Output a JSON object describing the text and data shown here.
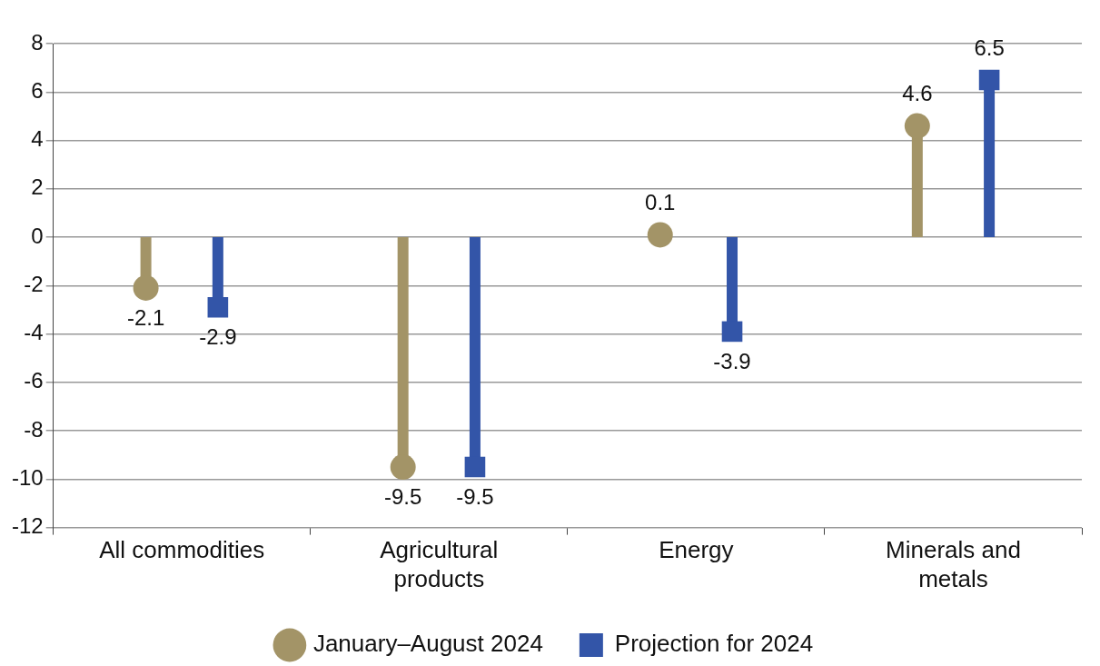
{
  "chart_data": {
    "type": "lollipop",
    "categories": [
      "All commodities",
      "Agricultural products",
      "Energy",
      "Minerals and metals"
    ],
    "series": [
      {
        "name": "January–August 2024",
        "color": "#a39467",
        "marker": "circle",
        "values": [
          -2.1,
          -9.5,
          0.1,
          4.6
        ]
      },
      {
        "name": "Projection for 2024",
        "color": "#3355a8",
        "marker": "square",
        "values": [
          -2.9,
          -9.5,
          -3.9,
          6.5
        ]
      }
    ],
    "ylim": [
      -12,
      8
    ],
    "yticks": [
      -12,
      -10,
      -8,
      -6,
      -4,
      -2,
      0,
      2,
      4,
      6,
      8
    ],
    "grid": "y",
    "legend": "bottom",
    "data_labels": true
  }
}
